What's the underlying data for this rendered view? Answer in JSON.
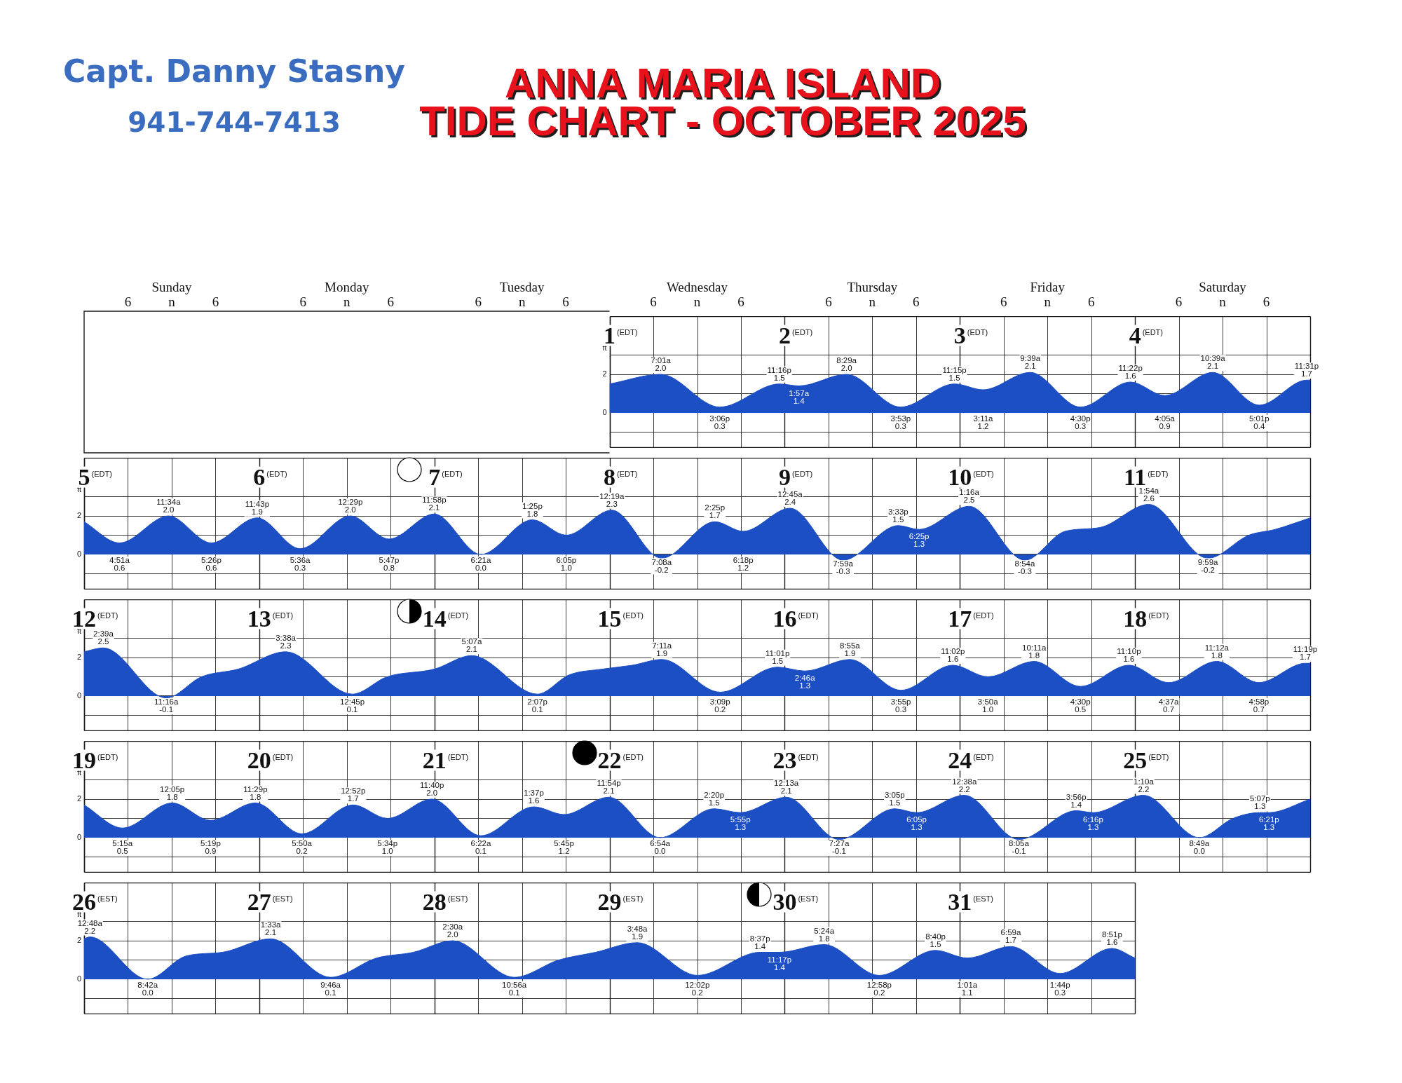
{
  "chart_data": [
    {
      "type": "other",
      "title": "ANNA MARIA ISLAND",
      "subtitle": "TIDE CHART - OCTOBER 2025",
      "annotations": [
        "Capt. Danny Stasny",
        "941-744-7413"
      ]
    },
    {
      "type": "other",
      "annotations": [
        "Sunday",
        "Monday",
        "Tuesday",
        "Wednesday",
        "Thursday",
        "Friday",
        "Saturday"
      ]
    },
    {
      "type": "other",
      "annotations": [
        "6",
        "n",
        "6",
        "6",
        "n",
        "6",
        "6",
        "n",
        "6",
        "6",
        "n",
        "6",
        "6",
        "n",
        "6",
        "6",
        "n",
        "6",
        "6",
        "n",
        "6"
      ]
    },
    {
      "type": "area",
      "ylabel": "ft",
      "color": "#1c4ec4",
      "grid": true,
      "annotations": [
        "(EDT)",
        "(EDT)",
        "(EDT)",
        "(EDT)"
      ],
      "x": [
        1,
        1.292,
        1.629,
        1.969,
        2.081,
        2.353,
        2.662,
        2.969,
        3.133,
        3.402,
        3.688,
        3.974,
        4.17,
        4.444,
        4.709,
        4.98,
        5
      ],
      "values": [
        1.5,
        2.0,
        0.3,
        1.5,
        1.4,
        2.0,
        0.3,
        1.5,
        1.2,
        2.1,
        0.3,
        1.6,
        0.9,
        2.1,
        0.4,
        1.7,
        1.7
      ],
      "value_labels": [
        null,
        "7:01a\n2.0",
        "3:06p\n0.3",
        "11:16p\n1.5",
        "1:57a\n1.4",
        "8:29a\n2.0",
        "3:53p\n0.3",
        "11:15p\n1.5",
        "3:11a\n1.2",
        "9:39a\n2.1",
        "4:30p\n0.3",
        "11:22p\n1.6",
        "4:05a\n0.9",
        "10:39a\n2.1",
        "5:01p\n0.4",
        "11:31p\n1.7",
        null
      ],
      "xlim": [
        1,
        5
      ],
      "xticks": [
        1,
        {
          "value": 1.25,
          "label": null
        },
        {
          "value": 1.5,
          "label": null
        },
        {
          "value": 1.75,
          "label": null
        },
        2,
        {
          "value": 2.25,
          "label": null
        },
        {
          "value": 2.5,
          "label": null
        },
        {
          "value": 2.75,
          "label": null
        },
        3,
        {
          "value": 3.25,
          "label": null
        },
        {
          "value": 3.5,
          "label": null
        },
        {
          "value": 3.75,
          "label": null
        },
        4,
        {
          "value": 4.25,
          "label": null
        },
        {
          "value": 4.5,
          "label": null
        },
        {
          "value": 4.75,
          "label": null
        }
      ],
      "ylim": [
        -1.8,
        5
      ],
      "yticks": [
        {
          "value": -1,
          "label": null
        },
        {
          "value": 0,
          "label": "0"
        },
        {
          "value": 1,
          "label": null
        },
        {
          "value": 2,
          "label": "2"
        },
        {
          "value": 3,
          "label": null
        }
      ]
    },
    {
      "type": "area",
      "ylabel": "ft",
      "color": "#1c4ec4",
      "grid": true,
      "annotations": [
        "(EDT)",
        "(EDT)",
        "(EDT)",
        "(EDT)",
        "(EDT)",
        "(EDT)",
        "(EDT)"
      ],
      "x": [
        5,
        5.202,
        5.482,
        5.726,
        5.988,
        6.233,
        6.52,
        6.741,
        6.999,
        7.265,
        7.559,
        7.753,
        8.013,
        8.297,
        8.601,
        8.763,
        9.031,
        9.333,
        9.648,
        9.767,
        10.053,
        10.371,
        10.6,
        10.8,
        11.079,
        11.416,
        11.65,
        11.8,
        12
      ],
      "values": [
        1.7,
        0.6,
        2.0,
        0.6,
        1.9,
        0.3,
        2.0,
        0.8,
        2.1,
        0.0,
        1.8,
        1.0,
        2.3,
        -0.2,
        1.7,
        1.2,
        2.4,
        -0.3,
        1.5,
        1.3,
        2.5,
        -0.3,
        1.2,
        1.4,
        2.6,
        -0.2,
        1.0,
        1.3,
        1.9
      ],
      "value_labels": [
        null,
        "4:51a\n0.6",
        "11:34a\n2.0",
        "5:26p\n0.6",
        "11:43p\n1.9",
        "5:36a\n0.3",
        "12:29p\n2.0",
        "5:47p\n0.8",
        "11:58p\n2.1",
        "6:21a\n0.0",
        "1:25p\n1.8",
        "6:05p\n1.0",
        "12:19a\n2.3",
        "7:08a\n-0.2",
        "2:25p\n1.7",
        "6:18p\n1.2",
        "12:45a\n2.4",
        "7:59a\n-0.3",
        "3:33p\n1.5",
        "6:25p\n1.3",
        "1:16a\n2.5",
        "8:54a\n-0.3",
        null,
        null,
        "1:54a\n2.6",
        "9:59a\n-0.2",
        null,
        null,
        null
      ],
      "xlim": [
        5,
        12
      ],
      "xticks": [
        5,
        {
          "value": 5.25,
          "label": null
        },
        {
          "value": 5.5,
          "label": null
        },
        {
          "value": 5.75,
          "label": null
        },
        6,
        {
          "value": 6.25,
          "label": null
        },
        {
          "value": 6.5,
          "label": null
        },
        {
          "value": 6.75,
          "label": null
        },
        7,
        {
          "value": 7.25,
          "label": null
        },
        {
          "value": 7.5,
          "label": null
        },
        {
          "value": 7.75,
          "label": null
        },
        8,
        {
          "value": 8.25,
          "label": null
        },
        {
          "value": 8.5,
          "label": null
        },
        {
          "value": 8.75,
          "label": null
        },
        9,
        {
          "value": 9.25,
          "label": null
        },
        {
          "value": 9.5,
          "label": null
        },
        {
          "value": 9.75,
          "label": null
        },
        10,
        {
          "value": 10.25,
          "label": null
        },
        {
          "value": 10.5,
          "label": null
        },
        {
          "value": 10.75,
          "label": null
        },
        11,
        {
          "value": 11.25,
          "label": null
        },
        {
          "value": 11.5,
          "label": null
        },
        {
          "value": 11.75,
          "label": null
        }
      ],
      "ylim": [
        -1.8,
        5
      ],
      "yticks": [
        {
          "value": -1,
          "label": null
        },
        {
          "value": 0,
          "label": "0"
        },
        {
          "value": 1,
          "label": null
        },
        {
          "value": 2,
          "label": "2"
        },
        {
          "value": 3,
          "label": null
        }
      ]
    },
    {
      "type": "area",
      "ylabel": "ft",
      "color": "#1c4ec4",
      "grid": true,
      "annotations": [
        "(EDT)",
        "(EDT)",
        "(EDT)",
        "(EDT)",
        "(EDT)",
        "(EDT)",
        "(EDT)"
      ],
      "x": [
        12,
        12.11,
        12.469,
        12.67,
        12.88,
        13.151,
        13.531,
        13.73,
        14,
        14.213,
        14.588,
        14.77,
        14.96,
        15.13,
        15.299,
        15.631,
        15.959,
        16.115,
        16.372,
        16.663,
        16.96,
        17.16,
        17.424,
        17.688,
        17.965,
        18.192,
        18.467,
        18.707,
        18.972,
        19
      ],
      "values": [
        2.3,
        2.5,
        -0.1,
        1.0,
        1.4,
        2.3,
        0.1,
        1.0,
        1.4,
        2.1,
        0.1,
        1.1,
        1.4,
        1.6,
        1.9,
        0.2,
        1.5,
        1.3,
        1.9,
        0.3,
        1.6,
        1.0,
        1.8,
        0.5,
        1.6,
        0.7,
        1.8,
        0.7,
        1.7,
        1.7
      ],
      "value_labels": [
        null,
        "2:39a\n2.5",
        "11:16a\n-0.1",
        null,
        null,
        "3:38a\n2.3",
        "12:45p\n0.1",
        null,
        null,
        "5:07a\n2.1",
        "2:07p\n0.1",
        null,
        null,
        null,
        "7:11a\n1.9",
        "3:09p\n0.2",
        "11:01p\n1.5",
        "2:46a\n1.3",
        "8:55a\n1.9",
        "3:55p\n0.3",
        "11:02p\n1.6",
        "3:50a\n1.0",
        "10:11a\n1.8",
        "4:30p\n0.5",
        "11:10p\n1.6",
        "4:37a\n0.7",
        "11:12a\n1.8",
        "4:58p\n0.7",
        "11:19p\n1.7",
        null
      ],
      "xlim": [
        12,
        19
      ],
      "xticks": [
        12,
        {
          "value": 12.25,
          "label": null
        },
        {
          "value": 12.5,
          "label": null
        },
        {
          "value": 12.75,
          "label": null
        },
        13,
        {
          "value": 13.25,
          "label": null
        },
        {
          "value": 13.5,
          "label": null
        },
        {
          "value": 13.75,
          "label": null
        },
        14,
        {
          "value": 14.25,
          "label": null
        },
        {
          "value": 14.5,
          "label": null
        },
        {
          "value": 14.75,
          "label": null
        },
        15,
        {
          "value": 15.25,
          "label": null
        },
        {
          "value": 15.5,
          "label": null
        },
        {
          "value": 15.75,
          "label": null
        },
        16,
        {
          "value": 16.25,
          "label": null
        },
        {
          "value": 16.5,
          "label": null
        },
        {
          "value": 16.75,
          "label": null
        },
        17,
        {
          "value": 17.25,
          "label": null
        },
        {
          "value": 17.5,
          "label": null
        },
        {
          "value": 17.75,
          "label": null
        },
        18,
        {
          "value": 18.25,
          "label": null
        },
        {
          "value": 18.5,
          "label": null
        },
        {
          "value": 18.75,
          "label": null
        }
      ],
      "ylim": [
        -1.8,
        5
      ],
      "yticks": [
        {
          "value": -1,
          "label": null
        },
        {
          "value": 0,
          "label": "0"
        },
        {
          "value": 1,
          "label": null
        },
        {
          "value": 2,
          "label": "2"
        },
        {
          "value": 3,
          "label": null
        }
      ]
    },
    {
      "type": "area",
      "ylabel": "ft",
      "color": "#1c4ec4",
      "grid": true,
      "annotations": [
        "(EDT)",
        "(EDT)",
        "(EDT)",
        "(EDT)",
        "(EDT)",
        "(EDT)",
        "(EDT)"
      ],
      "x": [
        19,
        19.219,
        19.503,
        19.722,
        19.978,
        20.243,
        20.536,
        20.732,
        20.986,
        21.265,
        21.567,
        21.74,
        21.996,
        22.288,
        22.597,
        22.747,
        23.009,
        23.31,
        23.628,
        23.753,
        24.026,
        24.337,
        24.664,
        24.761,
        25.049,
        25.367,
        25.56,
        25.713,
        25.765,
        26
      ],
      "values": [
        1.7,
        0.5,
        1.8,
        0.9,
        1.8,
        0.2,
        1.7,
        1.0,
        2.0,
        0.1,
        1.6,
        1.2,
        2.1,
        0.0,
        1.5,
        1.3,
        2.1,
        -0.1,
        1.5,
        1.3,
        2.2,
        -0.1,
        1.4,
        1.3,
        2.2,
        0.0,
        1.0,
        1.3,
        1.3,
        2.0
      ],
      "value_labels": [
        null,
        "5:15a\n0.5",
        "12:05p\n1.8",
        "5:19p\n0.9",
        "11:29p\n1.8",
        "5:50a\n0.2",
        "12:52p\n1.7",
        "5:34p\n1.0",
        "11:40p\n2.0",
        "6:22a\n0.1",
        "1:37p\n1.6",
        "5:45p\n1.2",
        "11:54p\n2.1",
        "6:54a\n0.0",
        "2:20p\n1.5",
        "5:55p\n1.3",
        "12:13a\n2.1",
        "7:27a\n-0.1",
        "3:05p\n1.5",
        "6:05p\n1.3",
        "12:38a\n2.2",
        "8:05a\n-0.1",
        "3:56p\n1.4",
        "6:16p\n1.3",
        "1:10a\n2.2",
        "8:49a\n0.0",
        null,
        "5:07p\n1.3",
        "6:21p\n1.3",
        null
      ],
      "xlim": [
        19,
        26
      ],
      "xticks": [
        19,
        {
          "value": 19.25,
          "label": null
        },
        {
          "value": 19.5,
          "label": null
        },
        {
          "value": 19.75,
          "label": null
        },
        20,
        {
          "value": 20.25,
          "label": null
        },
        {
          "value": 20.5,
          "label": null
        },
        {
          "value": 20.75,
          "label": null
        },
        21,
        {
          "value": 21.25,
          "label": null
        },
        {
          "value": 21.5,
          "label": null
        },
        {
          "value": 21.75,
          "label": null
        },
        22,
        {
          "value": 22.25,
          "label": null
        },
        {
          "value": 22.5,
          "label": null
        },
        {
          "value": 22.75,
          "label": null
        },
        23,
        {
          "value": 23.25,
          "label": null
        },
        {
          "value": 23.5,
          "label": null
        },
        {
          "value": 23.75,
          "label": null
        },
        24,
        {
          "value": 24.25,
          "label": null
        },
        {
          "value": 24.5,
          "label": null
        },
        {
          "value": 24.75,
          "label": null
        },
        25,
        {
          "value": 25.25,
          "label": null
        },
        {
          "value": 25.5,
          "label": null
        },
        {
          "value": 25.75,
          "label": null
        }
      ],
      "ylim": [
        -1.8,
        5
      ],
      "yticks": [
        {
          "value": -1,
          "label": null
        },
        {
          "value": 0,
          "label": "0"
        },
        {
          "value": 1,
          "label": null
        },
        {
          "value": 2,
          "label": "2"
        },
        {
          "value": 3,
          "label": null
        }
      ]
    },
    {
      "type": "area",
      "ylabel": "ft",
      "color": "#1c4ec4",
      "grid": true,
      "annotations": [
        "(EST)",
        "(EST)",
        "(EST)",
        "(EST)",
        "(EST)",
        "(EST)"
      ],
      "x": [
        26,
        26.033,
        26.363,
        26.58,
        26.79,
        27.065,
        27.407,
        27.67,
        27.88,
        28.104,
        28.456,
        28.71,
        28.92,
        29.158,
        29.501,
        29.859,
        29.97,
        30.225,
        30.54,
        30.861,
        31.042,
        31.291,
        31.572,
        31.869,
        32
      ],
      "values": [
        2.1,
        2.2,
        0.0,
        1.2,
        1.4,
        2.1,
        0.1,
        1.1,
        1.4,
        2.0,
        0.1,
        1.0,
        1.4,
        1.9,
        0.2,
        1.4,
        1.4,
        1.8,
        0.2,
        1.5,
        1.1,
        1.7,
        0.3,
        1.6,
        1.1
      ],
      "value_labels": [
        null,
        "12:48a\n2.2",
        "8:42a\n0.0",
        null,
        null,
        "1:33a\n2.1",
        "9:46a\n0.1",
        null,
        null,
        "2:30a\n2.0",
        "10:56a\n0.1",
        null,
        null,
        "3:48a\n1.9",
        "12:02p\n0.2",
        "8:37p\n1.4",
        "11:17p\n1.4",
        "5:24a\n1.8",
        "12:58p\n0.2",
        "8:40p\n1.5",
        "1:01a\n1.1",
        "6:59a\n1.7",
        "1:44p\n0.3",
        "8:51p\n1.6",
        null
      ],
      "xlim": [
        26,
        32
      ],
      "xticks": [
        26,
        {
          "value": 26.25,
          "label": null
        },
        {
          "value": 26.5,
          "label": null
        },
        {
          "value": 26.75,
          "label": null
        },
        27,
        {
          "value": 27.25,
          "label": null
        },
        {
          "value": 27.5,
          "label": null
        },
        {
          "value": 27.75,
          "label": null
        },
        28,
        {
          "value": 28.25,
          "label": null
        },
        {
          "value": 28.5,
          "label": null
        },
        {
          "value": 28.75,
          "label": null
        },
        29,
        {
          "value": 29.25,
          "label": null
        },
        {
          "value": 29.5,
          "label": null
        },
        {
          "value": 29.75,
          "label": null
        },
        30,
        {
          "value": 30.25,
          "label": null
        },
        {
          "value": 30.5,
          "label": null
        },
        {
          "value": 30.75,
          "label": null
        },
        31,
        {
          "value": 31.25,
          "label": null
        },
        {
          "value": 31.5,
          "label": null
        },
        {
          "value": 31.75,
          "label": null
        }
      ],
      "ylim": [
        -1.8,
        5
      ],
      "yticks": [
        {
          "value": -1,
          "label": null
        },
        {
          "value": 0,
          "label": "0"
        },
        {
          "value": 1,
          "label": null
        },
        {
          "value": 2,
          "label": "2"
        },
        {
          "value": 3,
          "label": null
        }
      ]
    }
  ]
}
